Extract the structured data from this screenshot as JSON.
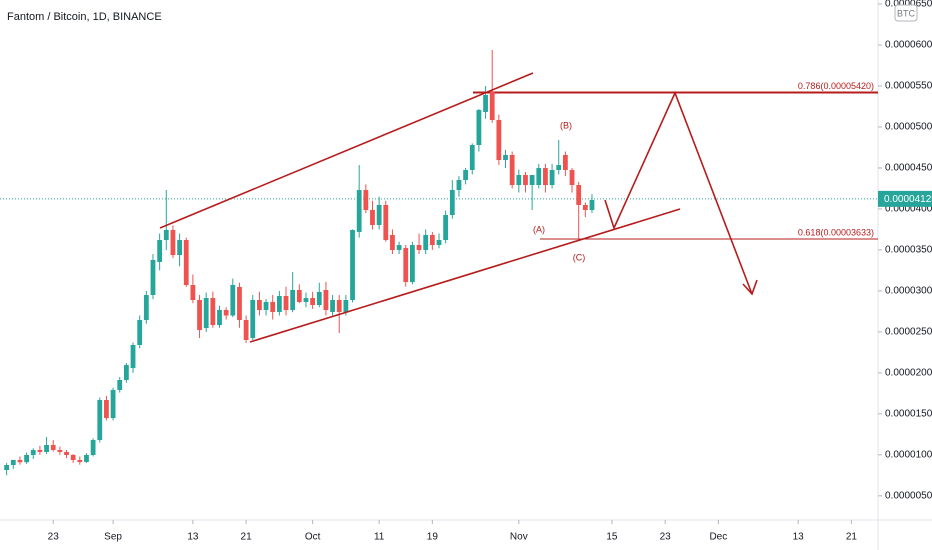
{
  "chart_data": {
    "type": "candlestick",
    "title": "Fantom / Bitcoin, 1D, BINANCE",
    "unit": "BTC",
    "up_color": "#26a69a",
    "down_color": "#ef5350",
    "x": [
      "Aug 16",
      "Aug 17",
      "Aug 18",
      "Aug 19",
      "Aug 20",
      "Aug 21",
      "Aug 22",
      "Aug 23",
      "Aug 24",
      "Aug 25",
      "Aug 26",
      "Aug 27",
      "Aug 28",
      "Aug 29",
      "Aug 30",
      "Aug 31",
      "Sep 1",
      "Sep 2",
      "Sep 3",
      "Sep 4",
      "Sep 5",
      "Sep 6",
      "Sep 7",
      "Sep 8",
      "Sep 9",
      "Sep 10",
      "Sep 11",
      "Sep 12",
      "Sep 13",
      "Sep 14",
      "Sep 15",
      "Sep 16",
      "Sep 17",
      "Sep 18",
      "Sep 19",
      "Sep 20",
      "Sep 21",
      "Sep 22",
      "Sep 23",
      "Sep 24",
      "Sep 25",
      "Sep 26",
      "Sep 27",
      "Sep 28",
      "Sep 29",
      "Sep 30",
      "Oct 1",
      "Oct 2",
      "Oct 3",
      "Oct 4",
      "Oct 5",
      "Oct 6",
      "Oct 7",
      "Oct 8",
      "Oct 9",
      "Oct 10",
      "Oct 11",
      "Oct 12",
      "Oct 13",
      "Oct 14",
      "Oct 15",
      "Oct 16",
      "Oct 17",
      "Oct 18",
      "Oct 19",
      "Oct 20",
      "Oct 21",
      "Oct 22",
      "Oct 23",
      "Oct 24",
      "Oct 25",
      "Oct 26",
      "Oct 27",
      "Oct 28",
      "Oct 29",
      "Oct 30",
      "Oct 31",
      "Nov 1",
      "Nov 2",
      "Nov 3",
      "Nov 4",
      "Nov 5",
      "Nov 6",
      "Nov 7",
      "Nov 8",
      "Nov 9",
      "Nov 10",
      "Nov 11",
      "Nov 12"
    ],
    "open": [
      8.15e-06,
      8.76e-06,
      9.37e-06,
      9.1e-06,
      9.98e-06,
      1.059e-05,
      1.035e-05,
      1.12e-05,
      1.059e-05,
      1.035e-05,
      9.98e-06,
      9.37e-06,
      9.13e-06,
      9.98e-06,
      1.181e-05,
      1.669e-05,
      1.449e-05,
      1.791e-05,
      1.913e-05,
      2.059e-05,
      2.34e-05,
      2.645e-05,
      2.95e-05,
      3.353e-05,
      3.621e-05,
      3.743e-05,
      3.438e-05,
      3.621e-05,
      3.072e-05,
      2.889e-05,
      2.547e-05,
      2.913e-05,
      2.584e-05,
      2.767e-05,
      2.7e-05,
      3.048e-05,
      2.645e-05,
      2.425e-05,
      2.889e-05,
      2.767e-05,
      2.865e-05,
      2.743e-05,
      2.938e-05,
      2.767e-05,
      3.011e-05,
      2.865e-05,
      2.913e-05,
      2.828e-05,
      3.011e-05,
      2.743e-05,
      2.889e-05,
      2.743e-05,
      2.889e-05,
      3.719e-05,
      4.231e-05,
      3.987e-05,
      3.804e-05,
      4.048e-05,
      3.682e-05,
      3.499e-05,
      3.523e-05,
      3.108e-05,
      3.56e-05,
      3.499e-05,
      3.682e-05,
      3.56e-05,
      3.621e-05,
      3.926e-05,
      4.231e-05,
      4.353e-05,
      4.475e-05,
      4.78e-05,
      5.183e-05,
      5.427e-05,
      5.085e-05,
      4.597e-05,
      4.658e-05,
      4.292e-05,
      4.414e-05,
      4.292e-05,
      4.292e-05,
      4.499e-05,
      4.292e-05,
      4.475e-05,
      4.658e-05,
      4.475e-05,
      4.292e-05,
      4.048e-05,
      3.987e-05
    ],
    "high": [
      9e-06,
      9.4e-06,
      9.8e-06,
      1.03e-05,
      1.08e-05,
      1.11e-05,
      1.218e-05,
      1.18e-05,
      1.1e-05,
      1.06e-05,
      1.01e-05,
      9.8e-06,
      1.02e-05,
      1.2e-05,
      1.7e-05,
      1.72e-05,
      1.82e-05,
      1.95e-05,
      2.12e-05,
      2.37e-05,
      2.7e-05,
      3e-05,
      3.45e-05,
      3.7e-05,
      4.231e-05,
      3.8e-05,
      3.7e-05,
      3.65e-05,
      3.2e-05,
      2.95e-05,
      2.98e-05,
      2.99e-05,
      2.82e-05,
      2.8e-05,
      3.15e-05,
      3.1e-05,
      2.7e-05,
      2.95e-05,
      2.99e-05,
      2.9e-05,
      2.95e-05,
      3e-05,
      3.05e-05,
      3.231e-05,
      3.08e-05,
      2.98e-05,
      2.99e-05,
      3.1e-05,
      3.11e-05,
      2.95e-05,
      2.95e-05,
      2.95e-05,
      3.75e-05,
      4.536e-05,
      4.3e-05,
      4.1e-05,
      4.15e-05,
      4.1e-05,
      3.75e-05,
      3.6e-05,
      3.56e-05,
      3.6e-05,
      3.7e-05,
      3.75e-05,
      3.72e-05,
      3.7e-05,
      3.98e-05,
      4.353e-05,
      4.4e-05,
      4.5e-05,
      4.8e-05,
      5.22e-05,
      5.5e-05,
      5.939e-05,
      5.15e-05,
      4.72e-05,
      4.7e-05,
      4.48e-05,
      4.45e-05,
      4.4e-05,
      4.55e-05,
      4.55e-05,
      4.55e-05,
      4.841e-05,
      4.7e-05,
      4.5e-05,
      4.33e-05,
      4.08e-05,
      4.18e-05
    ],
    "low": [
      7.5e-06,
      8.3e-06,
      8.8e-06,
      8.9e-06,
      9.5e-06,
      1e-05,
      1.01e-05,
      1.04e-05,
      1e-05,
      9.6e-06,
      9e-06,
      8.8e-06,
      9e-06,
      9.8e-06,
      1.15e-05,
      1.42e-05,
      1.42e-05,
      1.76e-05,
      1.88e-05,
      2e-05,
      2.3e-05,
      2.6e-05,
      2.9e-05,
      3.25e-05,
      3.5e-05,
      3.4e-05,
      3.3e-05,
      3.05e-05,
      2.85e-05,
      2.425e-05,
      2.5e-05,
      2.55e-05,
      2.55e-05,
      2.65e-05,
      2.68e-05,
      2.55e-05,
      2.364e-05,
      2.4e-05,
      2.7e-05,
      2.7e-05,
      2.65e-05,
      2.7e-05,
      2.7e-05,
      2.74e-05,
      2.85e-05,
      2.8e-05,
      2.78e-05,
      2.8e-05,
      2.7e-05,
      2.7e-05,
      2.486e-05,
      2.7e-05,
      2.86e-05,
      3.65e-05,
      3.95e-05,
      3.75e-05,
      3.75e-05,
      3.6e-05,
      3.45e-05,
      3.45e-05,
      3.05e-05,
      3.08e-05,
      3.45e-05,
      3.45e-05,
      3.5e-05,
      3.52e-05,
      3.58e-05,
      3.88e-05,
      4.15e-05,
      4.3e-05,
      4.42e-05,
      4.7e-05,
      5.1e-05,
      5.05e-05,
      4.536e-05,
      4.5e-05,
      4.25e-05,
      4.2e-05,
      4.2e-05,
      3.987e-05,
      4.25e-05,
      4.2e-05,
      4.25e-05,
      4.42e-05,
      4.4e-05,
      4.2e-05,
      3.621e-05,
      3.9e-05,
      3.95e-05
    ],
    "close": [
      8.76e-06,
      9.37e-06,
      9.1e-06,
      9.98e-06,
      1.059e-05,
      1.035e-05,
      1.12e-05,
      1.059e-05,
      1.035e-05,
      9.98e-06,
      9.37e-06,
      9.13e-06,
      9.98e-06,
      1.181e-05,
      1.669e-05,
      1.449e-05,
      1.791e-05,
      1.913e-05,
      2.096e-05,
      2.34e-05,
      2.645e-05,
      2.95e-05,
      3.377e-05,
      3.621e-05,
      3.743e-05,
      3.438e-05,
      3.621e-05,
      3.072e-05,
      2.889e-05,
      2.523e-05,
      2.913e-05,
      2.584e-05,
      2.767e-05,
      2.7e-05,
      3.072e-05,
      2.645e-05,
      2.401e-05,
      2.889e-05,
      2.767e-05,
      2.865e-05,
      2.743e-05,
      2.938e-05,
      2.767e-05,
      3.011e-05,
      2.865e-05,
      2.913e-05,
      2.828e-05,
      2.987e-05,
      2.767e-05,
      2.889e-05,
      2.743e-05,
      2.889e-05,
      3.743e-05,
      4.231e-05,
      3.987e-05,
      3.804e-05,
      4.048e-05,
      3.621e-05,
      3.499e-05,
      3.56e-05,
      3.108e-05,
      3.56e-05,
      3.499e-05,
      3.682e-05,
      3.56e-05,
      3.621e-05,
      3.926e-05,
      4.231e-05,
      4.353e-05,
      4.475e-05,
      4.78e-05,
      5.207e-05,
      5.39e-05,
      5.085e-05,
      4.597e-05,
      4.658e-05,
      4.292e-05,
      4.414e-05,
      4.292e-05,
      4.414e-05,
      4.499e-05,
      4.292e-05,
      4.475e-05,
      4.536e-05,
      4.475e-05,
      4.292e-05,
      4.048e-05,
      3.987e-05,
      4.109e-05
    ],
    "xlim": [
      "Aug 15",
      "Dec 25"
    ],
    "xticks": [
      {
        "value": "Aug 23",
        "label": "23"
      },
      {
        "value": "Sep 1",
        "label": "Sep"
      },
      {
        "value": "Sep 13",
        "label": "13"
      },
      {
        "value": "Sep 21",
        "label": "21"
      },
      {
        "value": "Oct 1",
        "label": "Oct"
      },
      {
        "value": "Oct 11",
        "label": "11"
      },
      {
        "value": "Oct 19",
        "label": "19"
      },
      {
        "value": "Nov 1",
        "label": "Nov"
      },
      {
        "value": "Nov 15",
        "label": "15"
      },
      {
        "value": "Nov 23",
        "label": "23"
      },
      {
        "value": "Dec 1",
        "label": "Dec"
      },
      {
        "value": "Dec 13",
        "label": "13"
      },
      {
        "value": "Dec 21",
        "label": "21"
      }
    ],
    "ylim": [
      2.05e-06,
      6.549e-05
    ],
    "yticks": [
      {
        "value": 5e-06,
        "label": "0.00000500"
      },
      {
        "value": 1e-05,
        "label": "0.00001000"
      },
      {
        "value": 1.5e-05,
        "label": "0.00001500"
      },
      {
        "value": 2e-05,
        "label": "0.00002000"
      },
      {
        "value": 2.5e-05,
        "label": "0.00002500"
      },
      {
        "value": 3e-05,
        "label": "0.00003000"
      },
      {
        "value": 3.5e-05,
        "label": "0.00003500"
      },
      {
        "value": 4e-05,
        "label": "0.00004000"
      },
      {
        "value": 4.5e-05,
        "label": "0.00004500"
      },
      {
        "value": 5e-05,
        "label": "0.00005000"
      },
      {
        "value": 5.5e-05,
        "label": "0.00005500"
      },
      {
        "value": 6e-05,
        "label": "0.00006000"
      },
      {
        "value": 6.5e-05,
        "label": "0.00006500"
      }
    ],
    "last_price": 4.123e-05,
    "fib_levels": [
      {
        "label": "0.786(0.00005420)",
        "value": 5.42e-05
      },
      {
        "label": "0.618(0.00003633)",
        "value": 3.633e-05
      }
    ],
    "annotations": [
      "(A)",
      "(B)",
      "(C)"
    ],
    "grid": false
  }
}
